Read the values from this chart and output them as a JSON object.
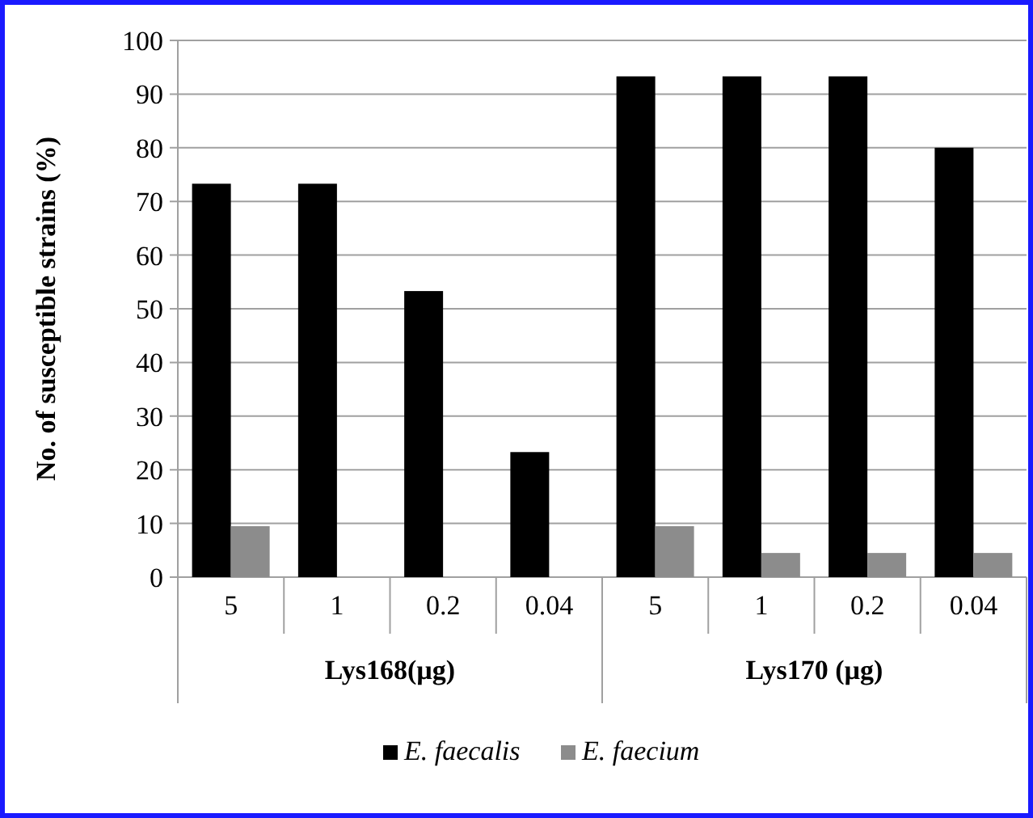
{
  "chart_data": {
    "type": "bar",
    "ylabel": "No. of susceptible strains (%)",
    "categories": [
      "5",
      "1",
      "0.2",
      "0.04",
      "5",
      "1",
      "0.2",
      "0.04"
    ],
    "series": [
      {
        "name": "E. faecalis",
        "color": "#000000",
        "values": [
          73.3,
          73.3,
          53.3,
          23.3,
          93.3,
          93.3,
          93.3,
          80
        ]
      },
      {
        "name": "E. faecium",
        "color": "#8c8c8c",
        "values": [
          9.5,
          0,
          0,
          0,
          9.5,
          4.5,
          4.5,
          4.5
        ]
      }
    ],
    "ylim": [
      0,
      100
    ],
    "yticks": [
      0,
      10,
      20,
      30,
      40,
      50,
      60,
      70,
      80,
      90,
      100
    ],
    "grid": "y",
    "legend": "bottom",
    "annotations": [
      "Lys168(µg)",
      "Lys170 (µg)"
    ]
  }
}
